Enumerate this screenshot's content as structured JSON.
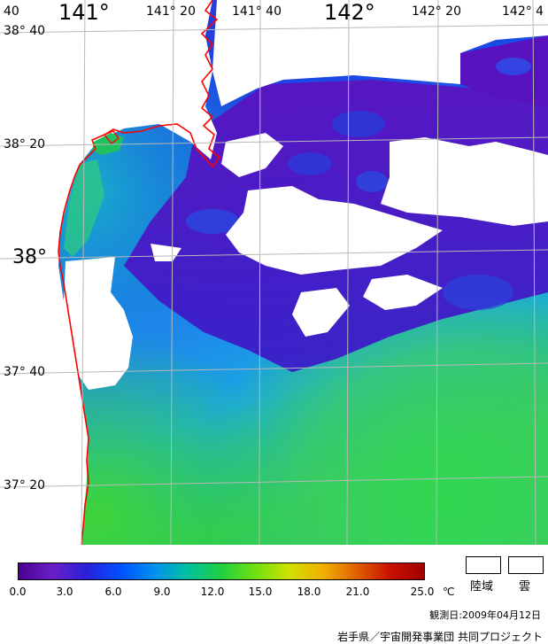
{
  "map": {
    "lon_labels": [
      {
        "text": "141°",
        "big": true
      },
      {
        "text": "141° 20",
        "big": false
      },
      {
        "text": "141° 40",
        "big": false
      },
      {
        "text": "142°",
        "big": true
      },
      {
        "text": "142° 20",
        "big": false
      },
      {
        "text": "142° 4",
        "big": false
      }
    ],
    "corner_label": "40",
    "lat_labels": [
      {
        "text": "38° 40",
        "big": false
      },
      {
        "text": "38° 20",
        "big": false
      },
      {
        "text": "38°",
        "big": true
      },
      {
        "text": "37° 40",
        "big": false
      },
      {
        "text": "37° 20",
        "big": false
      }
    ],
    "colors": {
      "coast": "#ff0000",
      "grid": "#b8b8b8",
      "land": "#ffffff",
      "cloud": "#ffffff"
    }
  },
  "legend": {
    "ticks": [
      "0.0",
      "3.0",
      "6.0",
      "9.0",
      "12.0",
      "15.0",
      "18.0",
      "21.0",
      "25.0"
    ],
    "unit": "℃",
    "land_label": "陸域",
    "cloud_label": "雲",
    "gradient_colors": [
      "#4a0090",
      "#6a1fc8",
      "#2a20d8",
      "#0050ff",
      "#0090f0",
      "#00c0a0",
      "#20d040",
      "#70e010",
      "#d0e000",
      "#f0b000",
      "#e06000",
      "#c81000",
      "#a00000"
    ]
  },
  "observation_date": "観測日:2009年04月12日",
  "credit": "岩手県／宇宙開発事業団 共同プロジェクト"
}
